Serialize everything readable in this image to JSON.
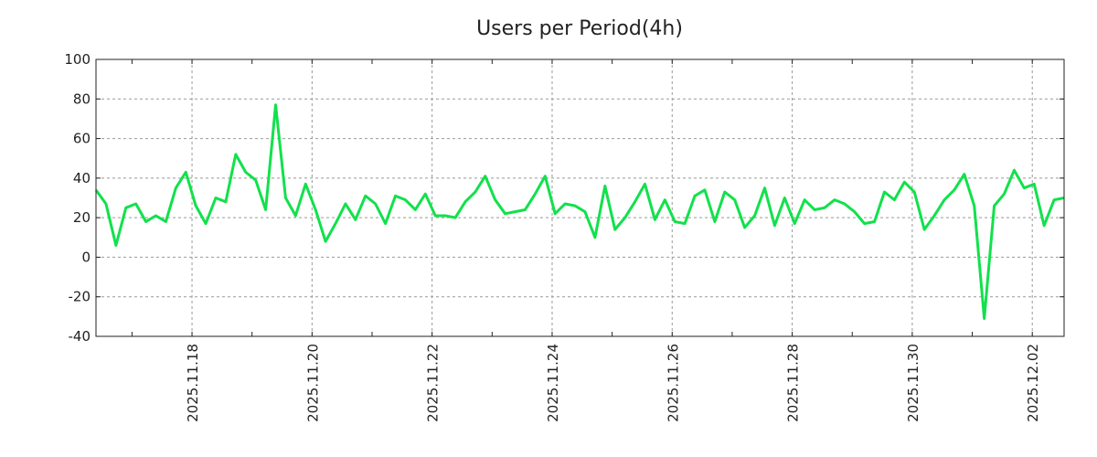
{
  "chart_data": {
    "type": "line",
    "title": "Users per Period(4h)",
    "xlabel": "",
    "ylabel": "",
    "ylim": [
      -40,
      100
    ],
    "yticks": [
      -40,
      -20,
      0,
      20,
      40,
      60,
      80,
      100
    ],
    "xlim_days": [
      16.4,
      32.53
    ],
    "xticks": [
      {
        "day": 18,
        "label": "2025.11.18"
      },
      {
        "day": 20,
        "label": "2025.11.20"
      },
      {
        "day": 22,
        "label": "2025.11.22"
      },
      {
        "day": 24,
        "label": "2025.11.24"
      },
      {
        "day": 26,
        "label": "2025.11.26"
      },
      {
        "day": 28,
        "label": "2025.11.28"
      },
      {
        "day": 30,
        "label": "2025.11.30"
      },
      {
        "day": 32,
        "label": "2025.12.02"
      }
    ],
    "grid": true,
    "series": [
      {
        "name": "users",
        "color": "#11e14b",
        "values": [
          34,
          27,
          6,
          25,
          27,
          18,
          21,
          18,
          35,
          43,
          26,
          17,
          30,
          28,
          52,
          43,
          39,
          24,
          77,
          30,
          21,
          37,
          24,
          8,
          17,
          27,
          19,
          31,
          27,
          17,
          31,
          29,
          24,
          32,
          21,
          21,
          20,
          28,
          33,
          41,
          29,
          22,
          23,
          24,
          32,
          41,
          22,
          27,
          26,
          23,
          10,
          36,
          14,
          20,
          28,
          37,
          19,
          29,
          18,
          17,
          31,
          34,
          18,
          33,
          29,
          15,
          21,
          35,
          16,
          30,
          17,
          29,
          24,
          25,
          29,
          27,
          23,
          17,
          18,
          33,
          29,
          38,
          33,
          14,
          21,
          29,
          34,
          42,
          26,
          -31,
          26,
          32,
          44,
          35,
          37,
          16,
          29,
          30
        ]
      }
    ]
  }
}
